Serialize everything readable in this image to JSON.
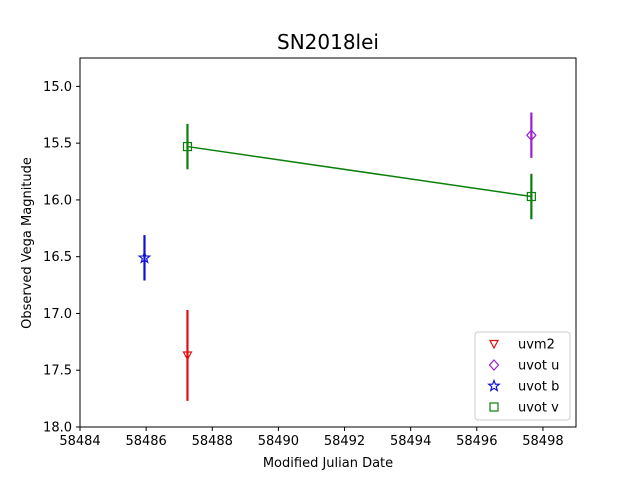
{
  "chart_data": {
    "type": "scatter",
    "title": "SN2018lei",
    "xlabel": "Modified Julian Date",
    "ylabel": "Observed Vega Magnitude",
    "xlim": [
      58484,
      58499
    ],
    "ylim": [
      18.0,
      14.75
    ],
    "y_inverted": true,
    "grid": false,
    "legend_position": "bottom-right",
    "x_ticks": [
      58484,
      58486,
      58488,
      58490,
      58492,
      58494,
      58496,
      58498
    ],
    "y_ticks": [
      15.0,
      15.5,
      16.0,
      16.5,
      17.0,
      17.5,
      18.0
    ],
    "series": [
      {
        "name": "uvm2",
        "color": "#e01010",
        "marker": "triangle-down",
        "connected": false,
        "points": [
          {
            "x": 58487.25,
            "y": 17.37,
            "err": 0.4
          }
        ]
      },
      {
        "name": "uvot u",
        "color": "#9b1fd6",
        "marker": "diamond",
        "connected": false,
        "points": [
          {
            "x": 58497.65,
            "y": 15.43,
            "err": 0.2
          }
        ]
      },
      {
        "name": "uvot b",
        "color": "#1010d8",
        "marker": "star",
        "connected": false,
        "points": [
          {
            "x": 58485.95,
            "y": 16.51,
            "err": 0.2
          }
        ]
      },
      {
        "name": "uvot v",
        "color": "#0a800a",
        "marker": "square",
        "connected": true,
        "points": [
          {
            "x": 58487.25,
            "y": 15.53,
            "err": 0.2
          },
          {
            "x": 58497.65,
            "y": 15.97,
            "err": 0.2
          }
        ]
      }
    ]
  }
}
